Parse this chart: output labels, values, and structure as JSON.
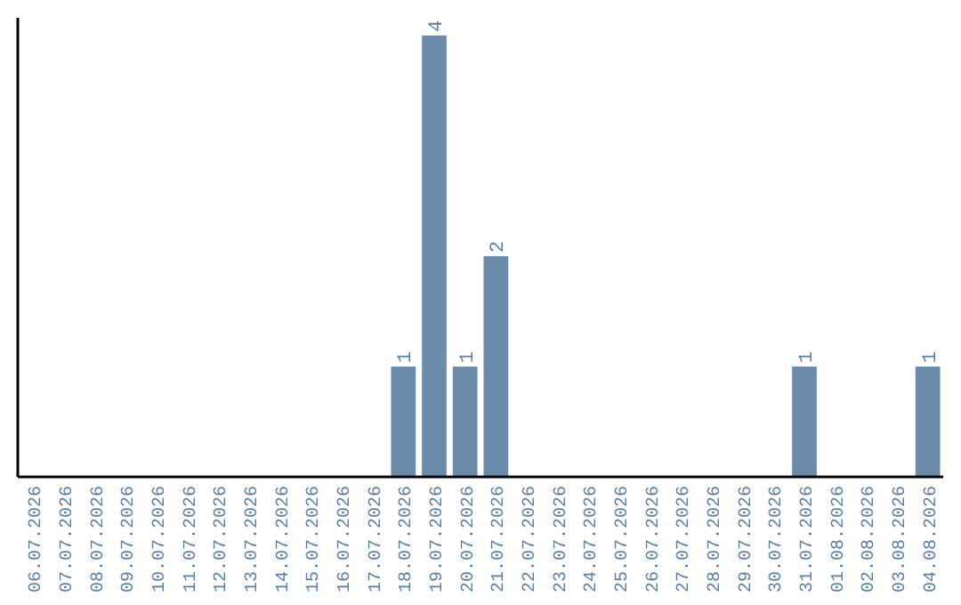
{
  "chart_data": {
    "type": "bar",
    "categories": [
      "06.07.2026",
      "07.07.2026",
      "08.07.2026",
      "09.07.2026",
      "10.07.2026",
      "11.07.2026",
      "12.07.2026",
      "13.07.2026",
      "14.07.2026",
      "15.07.2026",
      "16.07.2026",
      "17.07.2026",
      "18.07.2026",
      "19.07.2026",
      "20.07.2026",
      "21.07.2026",
      "22.07.2026",
      "23.07.2026",
      "24.07.2026",
      "25.07.2026",
      "26.07.2026",
      "27.07.2026",
      "28.07.2026",
      "29.07.2026",
      "30.07.2026",
      "31.07.2026",
      "01.08.2026",
      "02.08.2026",
      "03.08.2026",
      "04.08.2026"
    ],
    "values": [
      null,
      null,
      null,
      null,
      null,
      null,
      null,
      null,
      null,
      null,
      null,
      null,
      1,
      4,
      1,
      2,
      null,
      null,
      null,
      null,
      null,
      null,
      null,
      null,
      null,
      1,
      null,
      null,
      null,
      1
    ],
    "data_labels": true,
    "color": "#6a8caa"
  }
}
